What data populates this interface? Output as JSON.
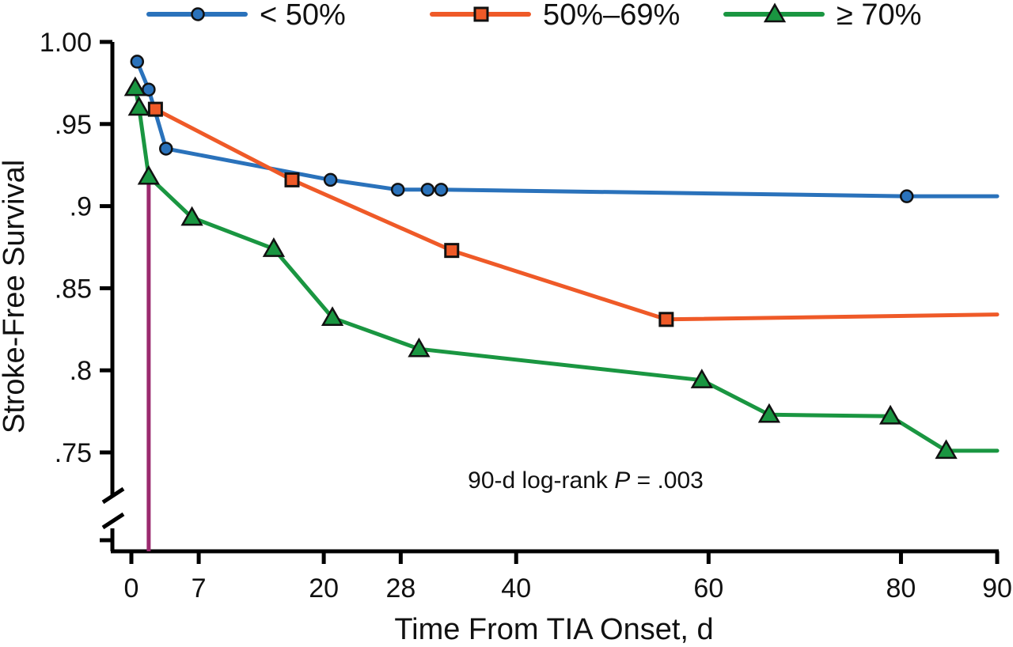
{
  "chart_data": {
    "type": "line",
    "title": "",
    "xlabel": "Time From TIA Onset, d",
    "ylabel": "Stroke-Free Survival",
    "xlim": [
      0,
      90
    ],
    "ylim": [
      0.75,
      1.0
    ],
    "y_axis_break": true,
    "x_ticks": [
      0,
      7,
      20,
      28,
      40,
      60,
      80,
      90
    ],
    "x_tick_labels": [
      "0",
      "7",
      "20",
      "28",
      "40",
      "60",
      "80",
      "90"
    ],
    "y_ticks": [
      1.0,
      0.95,
      0.9,
      0.85,
      0.8,
      0.75
    ],
    "y_tick_labels": [
      "1.00",
      ".95",
      ".9",
      ".85",
      ".8",
      ".75"
    ],
    "grid": false,
    "legend_position": "top",
    "annotation": {
      "prefix": "90-d log-rank ",
      "p_symbol": "P",
      "suffix": " = .003"
    },
    "reference_line": {
      "x": 1.8,
      "color": "#9b2a6e"
    },
    "series": [
      {
        "name": "< 50%",
        "color": "#2a72bb",
        "marker": "circle",
        "points": [
          [
            0.6,
            0.988
          ],
          [
            1.8,
            0.971
          ],
          [
            3.6,
            0.935
          ],
          [
            20.7,
            0.916
          ],
          [
            27.7,
            0.91
          ],
          [
            30.8,
            0.91
          ],
          [
            32.2,
            0.91
          ],
          [
            80.6,
            0.906
          ]
        ],
        "end": [
          90,
          0.906
        ]
      },
      {
        "name": "50%–69%",
        "color": "#ef5a28",
        "marker": "square",
        "points": [
          [
            2.5,
            0.959
          ],
          [
            16.7,
            0.916
          ],
          [
            33.3,
            0.873
          ],
          [
            55.6,
            0.831
          ]
        ],
        "end": [
          90,
          0.834
        ]
      },
      {
        "name": "≥ 70%",
        "color": "#1a9641",
        "marker": "triangle",
        "points": [
          [
            0.4,
            0.972
          ],
          [
            0.8,
            0.96
          ],
          [
            1.8,
            0.918
          ],
          [
            6.3,
            0.893
          ],
          [
            14.8,
            0.874
          ],
          [
            20.9,
            0.832
          ],
          [
            29.9,
            0.813
          ],
          [
            59.3,
            0.794
          ],
          [
            66.3,
            0.773
          ],
          [
            78.9,
            0.772
          ],
          [
            84.7,
            0.751
          ]
        ],
        "end": [
          90,
          0.751
        ]
      }
    ]
  }
}
